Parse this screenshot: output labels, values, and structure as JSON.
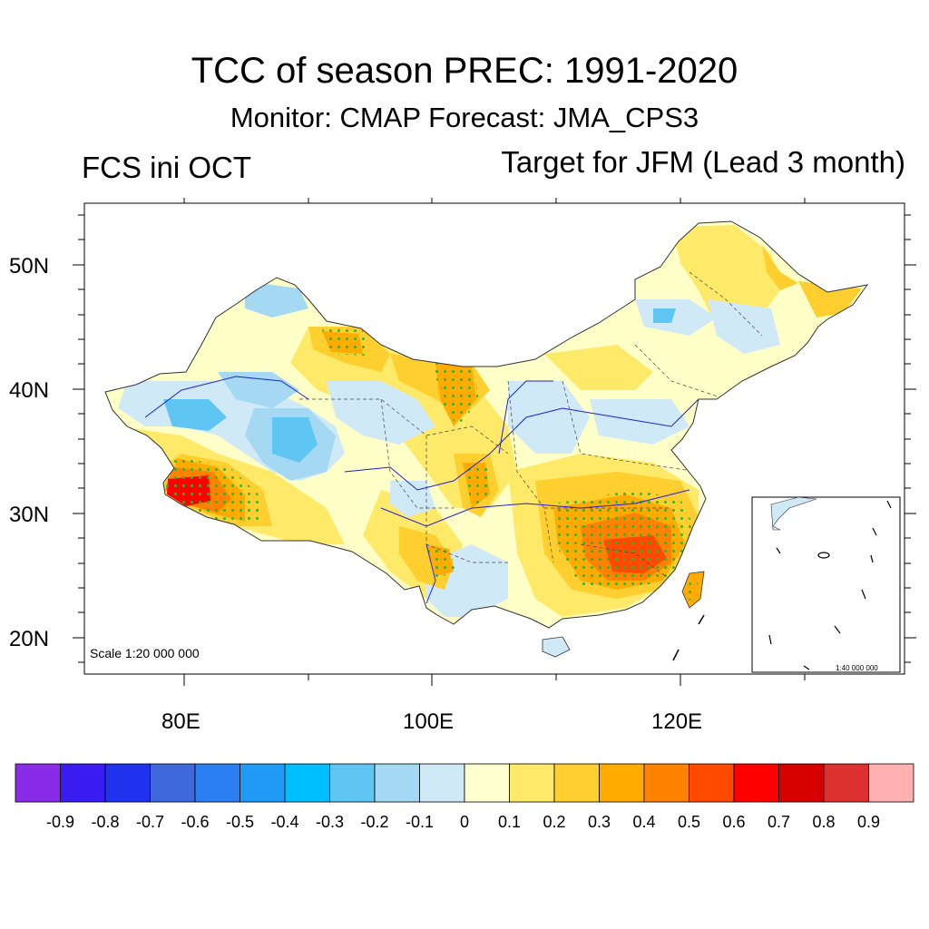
{
  "title": "TCC of season PREC: 1991-2020",
  "subtitle": "Monitor: CMAP   Forecast: JMA_CPS3",
  "left_label": "FCS ini OCT",
  "right_label": "Target for JFM (Lead 3 month)",
  "map": {
    "scale_label": "Scale 1:20 000 000",
    "inset_scale_label": "1:40 000 000",
    "lat_ticks": [
      "50N",
      "40N",
      "30N",
      "20N"
    ],
    "lon_ticks": [
      "80E",
      "100E",
      "120E"
    ],
    "significance_marker_color": "#2bb52b",
    "boundary_color": "#1f1fdb"
  },
  "colorbar": {
    "labels": [
      "-0.9",
      "-0.8",
      "-0.7",
      "-0.6",
      "-0.5",
      "-0.4",
      "-0.3",
      "-0.2",
      "-0.1",
      "0",
      "0.1",
      "0.2",
      "0.3",
      "0.4",
      "0.5",
      "0.6",
      "0.7",
      "0.8",
      "0.9"
    ],
    "colors": [
      "#8a2be8",
      "#3a1cf0",
      "#1f33ee",
      "#3f68dd",
      "#2c7ff0",
      "#1f9bf5",
      "#00bfff",
      "#5fc5f2",
      "#a4d8f3",
      "#cfe9f7",
      "#ffffcf",
      "#ffe969",
      "#ffcf30",
      "#ffab00",
      "#ff8200",
      "#ff4a00",
      "#ff0000",
      "#d60000",
      "#dd3131",
      "#ffb0b0"
    ]
  }
}
